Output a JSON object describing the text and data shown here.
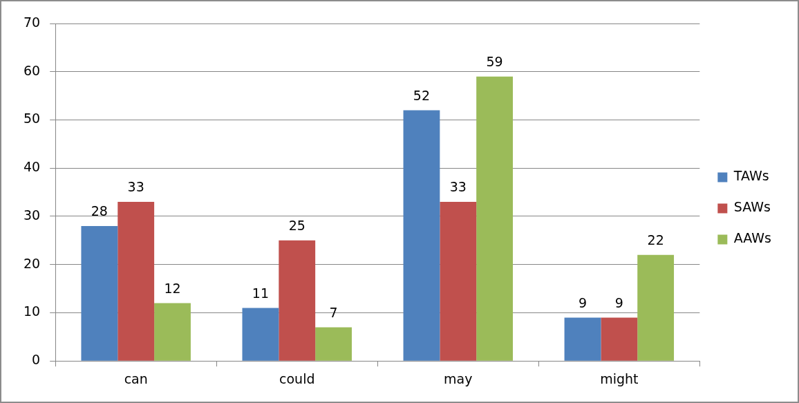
{
  "chart_data": {
    "type": "bar",
    "categories": [
      "can",
      "could",
      "may",
      "might"
    ],
    "series": [
      {
        "name": "TAWs",
        "color": "#4f81bd",
        "values": [
          28,
          11,
          52,
          9
        ]
      },
      {
        "name": "SAWs",
        "color": "#c0504d",
        "values": [
          33,
          25,
          33,
          9
        ]
      },
      {
        "name": "AAWs",
        "color": "#9bbb59",
        "values": [
          12,
          7,
          59,
          22
        ]
      }
    ],
    "ylim": [
      0,
      70
    ],
    "yticks": [
      0,
      10,
      20,
      30,
      40,
      50,
      60,
      70
    ],
    "grid": "y",
    "legend": "right",
    "data_labels": true
  }
}
